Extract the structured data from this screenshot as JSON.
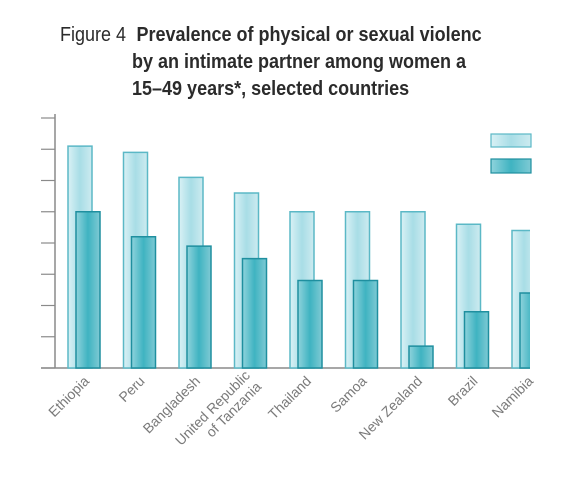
{
  "figure": {
    "number": "Figure 4",
    "title_lines": [
      "Prevalence of physical or sexual violenc",
      "by an intimate partner among women a",
      "15–49 years*, selected countries"
    ]
  },
  "chart_data": {
    "type": "bar",
    "title": "Prevalence of physical or sexual violence by an intimate partner among women aged 15–49 years*, selected countries",
    "categories": [
      "Ethiopia",
      "Peru",
      "Bangladesh",
      "United Republic of Tanzania",
      "Thailand",
      "Samoa",
      "New Zealand",
      "Brazil",
      "Namibia"
    ],
    "category_display": [
      [
        "Ethiopia"
      ],
      [
        "Peru"
      ],
      [
        "Bangladesh"
      ],
      [
        "United Republic",
        "of Tanzania"
      ],
      [
        "Thailand"
      ],
      [
        "Samoa"
      ],
      [
        "New Zealand"
      ],
      [
        "Brazil"
      ],
      [
        "Namibia"
      ]
    ],
    "series": [
      {
        "values": [
          71,
          69,
          61,
          56,
          50,
          50,
          50,
          46,
          44
        ]
      },
      {
        "values": [
          50,
          42,
          39,
          35,
          28,
          28,
          7,
          18,
          24
        ]
      }
    ],
    "ylim": [
      0,
      80
    ],
    "y_ticks": [
      0,
      10,
      20,
      30,
      40,
      50,
      60,
      70,
      80
    ],
    "y_tick_labels_visible": false,
    "legend_position": "top-right",
    "grid": false,
    "colors": {
      "series0_fill": "#a8dde6",
      "series0_stroke": "#5bb8c6",
      "series1_fill": "#6fc8d3",
      "series1_stroke": "#1f8f9f",
      "axis": "#8a8a8a",
      "label": "#7a7a7a"
    }
  }
}
